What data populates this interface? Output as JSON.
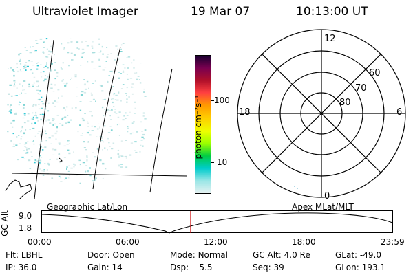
{
  "header": {
    "instrument": "Ultraviolet Imager",
    "date": "19 Mar 07",
    "time": "10:13:00 UT"
  },
  "colorbar": {
    "unit_label": "photon cm⁻²s⁻¹",
    "tick_labels": [
      "100",
      "10"
    ],
    "scale": "log",
    "colors": [
      "#1a0030",
      "#7a0050",
      "#b0102a",
      "#ff4040",
      "#ff9900",
      "#ffcc00",
      "#eeff00",
      "#99ff00",
      "#00cc44",
      "#00cccc",
      "#99e6e6",
      "#e6f2f2"
    ]
  },
  "polar_plot": {
    "hour_labels": [
      "12",
      "18",
      "6",
      "0"
    ],
    "lat_labels": [
      "60",
      "70",
      "80"
    ]
  },
  "altitude_panel": {
    "y_title": "GC Alt",
    "y_ticks": [
      "9.0",
      "1.8"
    ],
    "left_caption": "Geographic Lat/Lon",
    "right_caption": "Apex MLat/MLT",
    "x_ticks": [
      "00:00",
      "06:00",
      "12:00",
      "18:00",
      "23:59"
    ],
    "current_time_color": "#cc0000"
  },
  "status": {
    "row1": [
      {
        "label": "Flt:",
        "value": "LBHL"
      },
      {
        "label": "Door:",
        "value": "Open"
      },
      {
        "label": "Mode:",
        "value": "Normal"
      },
      {
        "label": "GC Alt:",
        "value": "4.0 Re"
      },
      {
        "label": "GLat:",
        "value": "-49.0"
      }
    ],
    "row2": [
      {
        "label": "IP:",
        "value": "36.0"
      },
      {
        "label": "Gain:",
        "value": "14"
      },
      {
        "label": "Dsp:",
        "value": "5.5"
      },
      {
        "label": "Seq:",
        "value": "39"
      },
      {
        "label": "GLon:",
        "value": "193.1"
      }
    ]
  }
}
